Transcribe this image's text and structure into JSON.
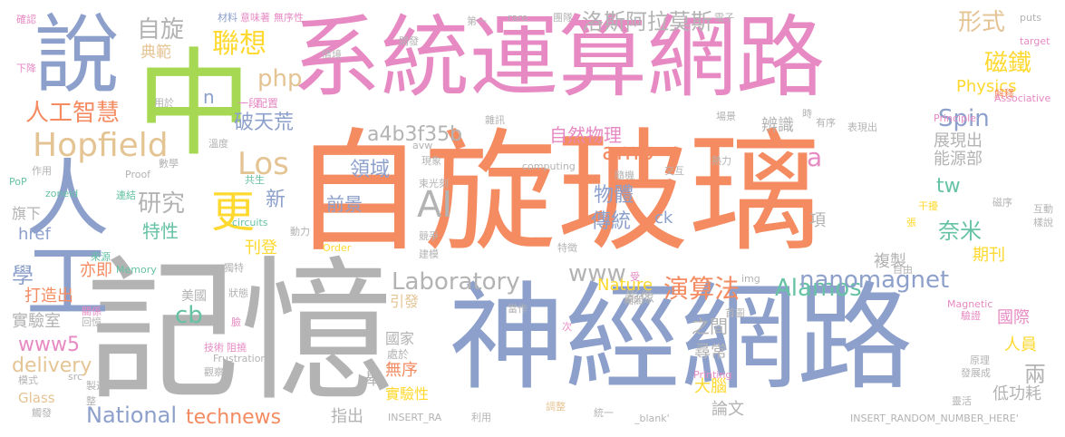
{
  "palette": {
    "orange": "#f48b61",
    "blue": "#8da0cb",
    "pink": "#e78ac3",
    "green": "#a6d854",
    "yellow": "#ffd92f",
    "tan": "#e5c494",
    "gray": "#b3b3b3",
    "teal": "#66c2a5"
  },
  "words": [
    {
      "id": "w-zixuan-boli",
      "text": "自旋玻璃",
      "color": "orange"
    },
    {
      "id": "w-xitong-yunsuan-wanglu",
      "text": "系統運算網路",
      "color": "pink"
    },
    {
      "id": "w-shenjing-wanglu",
      "text": "神經網路",
      "color": "blue"
    },
    {
      "id": "w-jiyi",
      "text": "記憶",
      "color": "gray"
    },
    {
      "id": "w-zhong",
      "text": "中",
      "color": "green"
    },
    {
      "id": "w-shuo",
      "text": "說",
      "color": "blue"
    },
    {
      "id": "w-rengong",
      "text": "人工",
      "color": "blue"
    },
    {
      "id": "w-hopfield",
      "text": "Hopfield",
      "color": "tan"
    },
    {
      "id": "w-rengong-zhihui",
      "text": "人工智慧",
      "color": "orange"
    },
    {
      "id": "w-lianxiang",
      "text": "聯想",
      "color": "yellow"
    },
    {
      "id": "w-zixuan",
      "text": "自旋",
      "color": "gray"
    },
    {
      "id": "w-dianfan",
      "text": "典範",
      "color": "tan"
    },
    {
      "id": "w-php",
      "text": "php",
      "color": "tan"
    },
    {
      "id": "w-n",
      "text": "n",
      "color": "blue"
    },
    {
      "id": "w-yiduan",
      "text": "一段",
      "color": "pink"
    },
    {
      "id": "w-peizhi",
      "text": "配置",
      "color": "pink"
    },
    {
      "id": "w-pothuang",
      "text": "破天荒",
      "color": "blue"
    },
    {
      "id": "w-los",
      "text": "Los",
      "color": "tan"
    },
    {
      "id": "w-a4b3",
      "text": "a4b3f35b",
      "color": "gray"
    },
    {
      "id": "w-amp",
      "text": "amp",
      "color": "orange"
    },
    {
      "id": "w-ziran-wuli",
      "text": "自然物理",
      "color": "pink"
    },
    {
      "id": "w-lingyu",
      "text": "領域",
      "color": "blue"
    },
    {
      "id": "w-qianjing",
      "text": "前景",
      "color": "blue"
    },
    {
      "id": "w-ai",
      "text": "AI",
      "color": "gray"
    },
    {
      "id": "w-yanjiu",
      "text": "研究",
      "color": "gray"
    },
    {
      "id": "w-geng",
      "text": "更",
      "color": "yellow"
    },
    {
      "id": "w-texing",
      "text": "特性",
      "color": "teal"
    },
    {
      "id": "w-xin",
      "text": "新",
      "color": "blue"
    },
    {
      "id": "w-kandeng",
      "text": "刊登",
      "color": "yellow"
    },
    {
      "id": "w-wuti",
      "text": "物體",
      "color": "blue"
    },
    {
      "id": "w-chuantong",
      "text": "傳統",
      "color": "blue"
    },
    {
      "id": "w-www",
      "text": "www",
      "color": "gray"
    },
    {
      "id": "w-laboratory",
      "text": "Laboratory",
      "color": "gray"
    },
    {
      "id": "w-nature",
      "text": "Nature",
      "color": "yellow"
    },
    {
      "id": "w-ck",
      "text": "ck",
      "color": "blue"
    },
    {
      "id": "w-yansuanfa",
      "text": "演算法",
      "color": "orange"
    },
    {
      "id": "w-alamos",
      "text": "Alamos",
      "color": "teal"
    },
    {
      "id": "w-nanomagnet",
      "text": "nanomagnet",
      "color": "blue"
    },
    {
      "id": "w-spin",
      "text": "Spin",
      "color": "blue"
    },
    {
      "id": "w-bianshi",
      "text": "辨識",
      "color": "gray"
    },
    {
      "id": "w-zhanxianchu",
      "text": "展現出",
      "color": "gray"
    },
    {
      "id": "w-nengyuanbu",
      "text": "能源部",
      "color": "gray"
    },
    {
      "id": "w-a",
      "text": "a",
      "color": "pink"
    },
    {
      "id": "w-tw",
      "text": "tw",
      "color": "teal"
    },
    {
      "id": "w-naimi",
      "text": "奈米",
      "color": "teal"
    },
    {
      "id": "w-xiang",
      "text": "項",
      "color": "gray"
    },
    {
      "id": "w-qikan",
      "text": "期刊",
      "color": "yellow"
    },
    {
      "id": "w-fuzhi",
      "text": "複製",
      "color": "gray"
    },
    {
      "id": "w-luosi",
      "text": "洛斯阿拉莫斯",
      "color": "gray"
    },
    {
      "id": "w-xingshi",
      "text": "形式",
      "color": "tan"
    },
    {
      "id": "w-citie",
      "text": "磁鐵",
      "color": "yellow"
    },
    {
      "id": "w-physics",
      "text": "Physics",
      "color": "yellow"
    },
    {
      "id": "w-xue",
      "text": "學",
      "color": "blue"
    },
    {
      "id": "w-yiji",
      "text": "亦即",
      "color": "orange"
    },
    {
      "id": "w-href",
      "text": "href",
      "color": "blue"
    },
    {
      "id": "w-dazaochu",
      "text": "打造出",
      "color": "orange"
    },
    {
      "id": "w-shiyanshi",
      "text": "實驗室",
      "color": "gray"
    },
    {
      "id": "w-cb",
      "text": "cb",
      "color": "teal"
    },
    {
      "id": "w-www5",
      "text": "www5",
      "color": "pink"
    },
    {
      "id": "w-delivery",
      "text": "delivery",
      "color": "tan"
    },
    {
      "id": "w-glass",
      "text": "Glass",
      "color": "tan"
    },
    {
      "id": "w-national",
      "text": "National",
      "color": "blue"
    },
    {
      "id": "w-technews",
      "text": "technews",
      "color": "orange"
    },
    {
      "id": "w-meiguo",
      "text": "美國",
      "color": "gray"
    },
    {
      "id": "w-yinfa",
      "text": "引發",
      "color": "tan"
    },
    {
      "id": "w-yingxiang",
      "text": "影像",
      "color": "gray"
    },
    {
      "id": "w-zhijian",
      "text": "之間",
      "color": "gray"
    },
    {
      "id": "w-guojia",
      "text": "國家",
      "color": "gray"
    },
    {
      "id": "w-wuxu",
      "text": "無序",
      "color": "orange"
    },
    {
      "id": "w-shiyanxing",
      "text": "實驗性",
      "color": "yellow"
    },
    {
      "id": "w-zhichu",
      "text": "指出",
      "color": "gray"
    },
    {
      "id": "w-xunchang",
      "text": "尋常",
      "color": "gray"
    },
    {
      "id": "w-danao",
      "text": "大腦",
      "color": "yellow"
    },
    {
      "id": "w-lunwen",
      "text": "論文",
      "color": "gray"
    },
    {
      "id": "w-liang",
      "text": "兩",
      "color": "gray"
    },
    {
      "id": "w-digonghao",
      "text": "低功耗",
      "color": "gray"
    },
    {
      "id": "w-guoji",
      "text": "國際",
      "color": "pink"
    },
    {
      "id": "w-renyuan",
      "text": "人員",
      "color": "yellow"
    },
    {
      "id": "w-qixia",
      "text": "旗下",
      "color": "gray"
    },
    {
      "id": "w-ju",
      "text": "舉",
      "color": "gray"
    },
    {
      "id": "w-chuyu",
      "text": "處於",
      "color": "gray"
    },
    {
      "id": "w-queren",
      "text": "確認",
      "color": "pink"
    },
    {
      "id": "w-xiajiang",
      "text": "下降",
      "color": "pink"
    },
    {
      "id": "w-cailiao",
      "text": "材料",
      "color": "blue"
    },
    {
      "id": "w-yiweizhe",
      "text": "意味著",
      "color": "pink"
    },
    {
      "id": "w-wuxuxing",
      "text": "無序性",
      "color": "pink"
    },
    {
      "id": "w-qingkuang",
      "text": "情境",
      "color": "gray"
    },
    {
      "id": "w-kaifa",
      "text": "開發",
      "color": "gray"
    },
    {
      "id": "w-diyi",
      "text": "第一",
      "color": "gray"
    },
    {
      "id": "w-rare",
      "text": "rare",
      "color": "gray"
    },
    {
      "id": "w-tuandui",
      "text": "團隊",
      "color": "gray"
    },
    {
      "id": "w-dianzi",
      "text": "電子",
      "color": "gray"
    },
    {
      "id": "w-puts",
      "text": "puts",
      "color": "gray"
    },
    {
      "id": "w-target",
      "text": "target",
      "color": "pink"
    },
    {
      "id": "w-jiedu",
      "text": "解釋",
      "color": "orange"
    },
    {
      "id": "w-associative",
      "text": "Associative",
      "color": "pink"
    },
    {
      "id": "w-changjing",
      "text": "場景",
      "color": "gray"
    },
    {
      "id": "w-principle",
      "text": "Principle",
      "color": "pink"
    },
    {
      "id": "w-shi",
      "text": "時",
      "color": "gray"
    },
    {
      "id": "w-youxu",
      "text": "有序",
      "color": "gray"
    },
    {
      "id": "w-biaoxianchu",
      "text": "表現出",
      "color": "gray"
    },
    {
      "id": "w-yongyu",
      "text": "用於",
      "color": "gray"
    },
    {
      "id": "w-avw",
      "text": "avw",
      "color": "gray"
    },
    {
      "id": "w-shuxue",
      "text": "數學",
      "color": "gray"
    },
    {
      "id": "w-proof",
      "text": "Proof",
      "color": "gray"
    },
    {
      "id": "w-wendu",
      "text": "溫度",
      "color": "gray"
    },
    {
      "id": "w-zuoyong",
      "text": "作用",
      "color": "gray"
    },
    {
      "id": "w-pop",
      "text": "PoP",
      "color": "teal"
    },
    {
      "id": "w-zoneid",
      "text": "zoneid",
      "color": "teal"
    },
    {
      "id": "w-lianjie",
      "text": "連結",
      "color": "teal"
    },
    {
      "id": "w-gongsheng",
      "text": "共生",
      "color": "teal"
    },
    {
      "id": "w-zhaxun",
      "text": "雜訊",
      "color": "gray"
    },
    {
      "id": "w-xianxiang",
      "text": "現象",
      "color": "gray"
    },
    {
      "id": "w-dongguangke",
      "text": "束光刻",
      "color": "gray"
    },
    {
      "id": "w-computing",
      "text": "computing",
      "color": "gray"
    },
    {
      "id": "w-suiji",
      "text": "隨機",
      "color": "gray"
    },
    {
      "id": "w-rexue",
      "text": "熱力",
      "color": "gray"
    },
    {
      "id": "w-jiaohu",
      "text": "交互",
      "color": "gray"
    },
    {
      "id": "w-ganrao",
      "text": "干擾",
      "color": "yellow"
    },
    {
      "id": "w-zhang",
      "text": "張",
      "color": "yellow"
    },
    {
      "id": "w-cisheng",
      "text": "磁序",
      "color": "gray"
    },
    {
      "id": "w-hudong",
      "text": "互動",
      "color": "gray"
    },
    {
      "id": "w-yangshuo",
      "text": "樣說",
      "color": "gray"
    },
    {
      "id": "w-circuits",
      "text": "circuits",
      "color": "teal"
    },
    {
      "id": "w-order",
      "text": "Order",
      "color": "yellow"
    },
    {
      "id": "w-dongli",
      "text": "動力",
      "color": "gray"
    },
    {
      "id": "w-tedu",
      "text": "特徵",
      "color": "gray"
    },
    {
      "id": "w-jingsai",
      "text": "競爭",
      "color": "gray"
    },
    {
      "id": "w-jianmo",
      "text": "建模",
      "color": "gray"
    },
    {
      "id": "w-laiyuan",
      "text": "來源",
      "color": "teal"
    },
    {
      "id": "w-memory",
      "text": "Memory",
      "color": "teal"
    },
    {
      "id": "w-duli",
      "text": "獨特",
      "color": "gray"
    },
    {
      "id": "w-zhuangtai",
      "text": "狀態",
      "color": "gray"
    },
    {
      "id": "w-guanxi",
      "text": "關係",
      "color": "pink"
    },
    {
      "id": "w-huiyi",
      "text": "回憶",
      "color": "gray"
    },
    {
      "id": "w-lian",
      "text": "臉",
      "color": "pink"
    },
    {
      "id": "w-jishu",
      "text": "技術",
      "color": "pink"
    },
    {
      "id": "w-zuai",
      "text": "阻撓",
      "color": "pink"
    },
    {
      "id": "w-frustration",
      "text": "Frustration",
      "color": "gray"
    },
    {
      "id": "w-guancha",
      "text": "觀察",
      "color": "gray"
    },
    {
      "id": "w-moshi",
      "text": "模式",
      "color": "gray"
    },
    {
      "id": "w-src",
      "text": "src",
      "color": "gray"
    },
    {
      "id": "w-zhizao",
      "text": "製造",
      "color": "gray"
    },
    {
      "id": "w-zheng",
      "text": "整",
      "color": "gray"
    },
    {
      "id": "w-chufa",
      "text": "觸發",
      "color": "gray"
    },
    {
      "id": "w-insert-ra",
      "text": "INSERT_RA",
      "color": "gray"
    },
    {
      "id": "w-liyong",
      "text": "利用",
      "color": "gray"
    },
    {
      "id": "w-tiaozheng",
      "text": "調整",
      "color": "tan"
    },
    {
      "id": "w-tongyi",
      "text": "統一",
      "color": "gray"
    },
    {
      "id": "w-blank",
      "text": "_blank'",
      "color": "gray"
    },
    {
      "id": "w-insert-random",
      "text": "INSERT_RANDOM_NUMBER_HERE'",
      "color": "gray"
    },
    {
      "id": "w-img",
      "text": "img",
      "color": "gray"
    },
    {
      "id": "w-shou",
      "text": "受",
      "color": "pink"
    },
    {
      "id": "w-xiangguan",
      "text": "相關",
      "color": "gray"
    },
    {
      "id": "w-zuozuo",
      "text": "當作",
      "color": "gray"
    },
    {
      "id": "w-shouge",
      "text": "首圖",
      "color": "gray"
    },
    {
      "id": "w-ci",
      "text": "次",
      "color": "pink"
    },
    {
      "id": "w-printing",
      "text": "Printing",
      "color": "pink"
    },
    {
      "id": "w-ziyou",
      "text": "自由",
      "color": "gray"
    },
    {
      "id": "w-magnetic",
      "text": "Magnetic",
      "color": "pink"
    },
    {
      "id": "w-yanzheng",
      "text": "驗證",
      "color": "pink"
    },
    {
      "id": "w-yuanli",
      "text": "原理",
      "color": "gray"
    },
    {
      "id": "w-fazhancheng",
      "text": "發展成",
      "color": "gray"
    },
    {
      "id": "w-lingyun",
      "text": "靈活",
      "color": "gray"
    }
  ]
}
